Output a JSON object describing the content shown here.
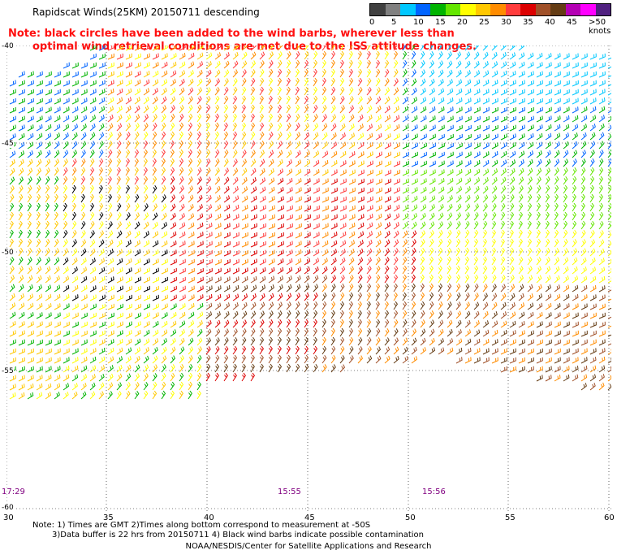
{
  "title": "Rapidscat Winds(25KM) 20150711 descending",
  "note_line1": "Note: black circles have been added to the wind barbs, wherever less than",
  "note_line2": "optimal wind retrieval conditions are met due to the ISS attitude changes.",
  "legend": {
    "labels": [
      "0",
      "5",
      "10",
      "15",
      "20",
      "25",
      "30",
      "35",
      "40",
      "45",
      ">50 knots"
    ],
    "colors": [
      "#404040",
      "#808080",
      "#00c8ff",
      "#0064ff",
      "#00b400",
      "#64e600",
      "#ffff00",
      "#ffc800",
      "#ff8c00",
      "#ff3c3c",
      "#dc0000",
      "#a05028",
      "#643c14",
      "#b400b4",
      "#ff00ff",
      "#502080"
    ]
  },
  "axes": {
    "x_ticks": [
      "30",
      "35",
      "40",
      "45",
      "50",
      "55",
      "60"
    ],
    "y_ticks": [
      "-40",
      "-45",
      "-50",
      "-55",
      "-60"
    ]
  },
  "time_labels": [
    "17:29",
    "15:55",
    "15:56"
  ],
  "footnote_line1": "Note: 1) Times are GMT 2)Times along bottom correspond to measurement at -50S",
  "footnote_line2": "3)Data buffer is 22 hrs from 20150711 4) Black wind barbs indicate possible contamination",
  "credit": "NOAA/NESDIS/Center for Satellite Applications and Research"
}
